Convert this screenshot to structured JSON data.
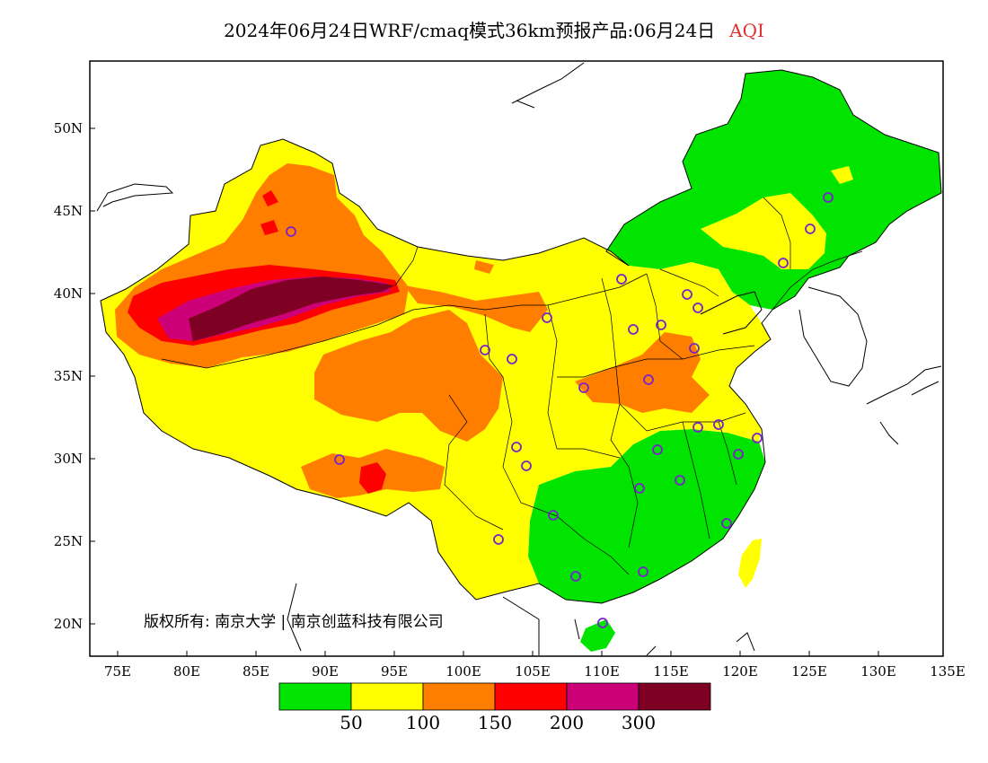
{
  "title": {
    "main": "2024年06月24日WRF/cmaq模式36km预报产品:06月24日",
    "variable": "AQI"
  },
  "copyright": "版权所有: 南京大学 | 南京创蓝科技有限公司",
  "axes": {
    "lat_ticks": [
      "50N",
      "45N",
      "40N",
      "35N",
      "30N",
      "25N",
      "20N"
    ],
    "lon_ticks": [
      "75E",
      "80E",
      "85E",
      "90E",
      "95E",
      "100E",
      "105E",
      "110E",
      "115E",
      "120E",
      "125E",
      "130E",
      "135E"
    ],
    "lon_range": [
      73,
      135
    ],
    "lat_range": [
      18,
      54
    ]
  },
  "legend": {
    "colors": [
      "#00e400",
      "#ffff00",
      "#ff7e00",
      "#ff0000",
      "#cc0077",
      "#7e0023"
    ],
    "labels": [
      "50",
      "100",
      "150",
      "200",
      "300"
    ]
  },
  "colors": {
    "border": "#000000",
    "city_marker": "#7a22cc"
  }
}
